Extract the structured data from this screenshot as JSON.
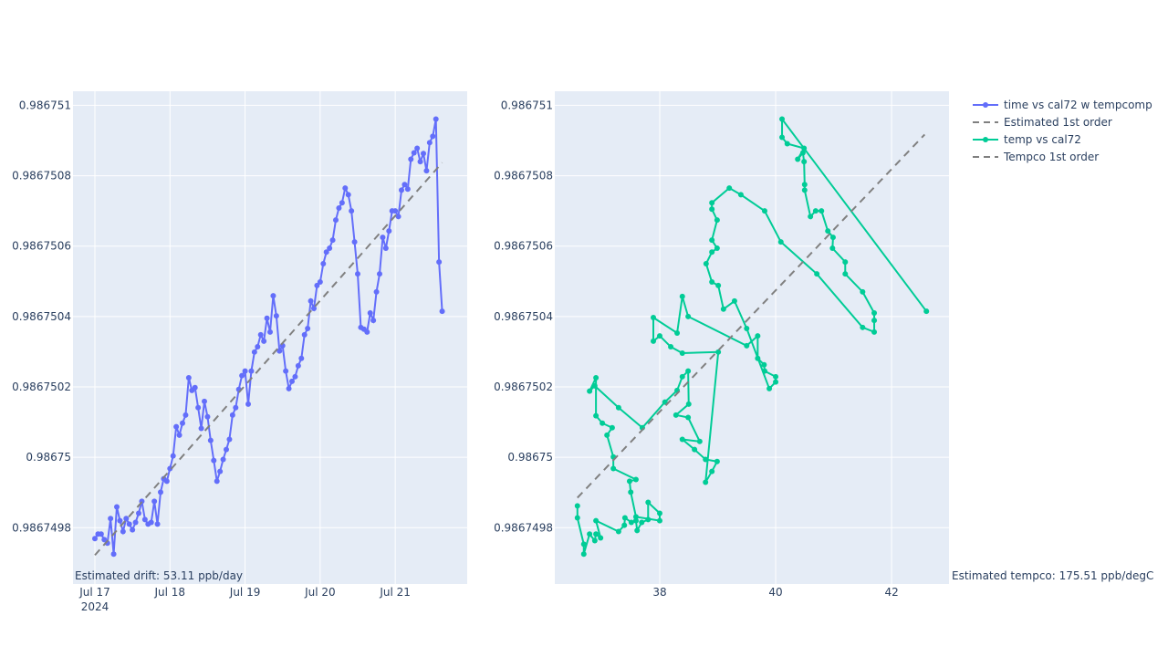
{
  "chart_data": [
    {
      "type": "line",
      "xaxis_type": "date",
      "annotation": "Estimated drift:  53.11 ppb/day",
      "xlim": [
        "2024-07-16 17:00",
        "2024-07-21 23:00"
      ],
      "xticks": [
        {
          "value": "2024-07-17 00:00",
          "label": "Jul 17\n2024"
        },
        {
          "value": "2024-07-18 00:00",
          "label": "Jul 18"
        },
        {
          "value": "2024-07-19 00:00",
          "label": "Jul 19"
        },
        {
          "value": "2024-07-20 00:00",
          "label": "Jul 20"
        },
        {
          "value": "2024-07-21 00:00",
          "label": "Jul 21"
        }
      ],
      "ylim": [
        0.98674964,
        0.98675104
      ],
      "yticks": [
        0.9867498,
        0.98675,
        0.9867502,
        0.9867504,
        0.9867506,
        0.9867508,
        0.986751
      ],
      "grid": true,
      "series": [
        {
          "name": "time vs cal72 w tempcomp",
          "color": "#636efa",
          "mode": "lines+markers",
          "x": [
            "2024-07-17 00:00",
            "2024-07-17 01:00",
            "2024-07-17 02:00",
            "2024-07-17 03:00",
            "2024-07-17 04:00",
            "2024-07-17 05:00",
            "2024-07-17 06:00",
            "2024-07-17 07:00",
            "2024-07-17 08:00",
            "2024-07-17 09:00",
            "2024-07-17 10:00",
            "2024-07-17 11:00",
            "2024-07-17 12:00",
            "2024-07-17 13:00",
            "2024-07-17 14:00",
            "2024-07-17 15:00",
            "2024-07-17 16:00",
            "2024-07-17 17:00",
            "2024-07-17 18:00",
            "2024-07-17 19:00",
            "2024-07-17 20:00",
            "2024-07-17 21:00",
            "2024-07-17 22:00",
            "2024-07-17 23:00",
            "2024-07-18 00:00",
            "2024-07-18 01:00",
            "2024-07-18 02:00",
            "2024-07-18 03:00",
            "2024-07-18 04:00",
            "2024-07-18 05:00",
            "2024-07-18 06:00",
            "2024-07-18 07:00",
            "2024-07-18 08:00",
            "2024-07-18 09:00",
            "2024-07-18 10:00",
            "2024-07-18 11:00",
            "2024-07-18 12:00",
            "2024-07-18 13:00",
            "2024-07-18 14:00",
            "2024-07-18 15:00",
            "2024-07-18 16:00",
            "2024-07-18 17:00",
            "2024-07-18 18:00",
            "2024-07-18 19:00",
            "2024-07-18 20:00",
            "2024-07-18 21:00",
            "2024-07-18 22:00",
            "2024-07-18 23:00",
            "2024-07-19 00:00",
            "2024-07-19 01:00",
            "2024-07-19 02:00",
            "2024-07-19 03:00",
            "2024-07-19 04:00",
            "2024-07-19 05:00",
            "2024-07-19 06:00",
            "2024-07-19 07:00",
            "2024-07-19 08:00",
            "2024-07-19 09:00",
            "2024-07-19 10:00",
            "2024-07-19 11:00",
            "2024-07-19 12:00",
            "2024-07-19 13:00",
            "2024-07-19 14:00",
            "2024-07-19 15:00",
            "2024-07-19 16:00",
            "2024-07-19 17:00",
            "2024-07-19 18:00",
            "2024-07-19 19:00",
            "2024-07-19 20:00",
            "2024-07-19 21:00",
            "2024-07-19 22:00",
            "2024-07-19 23:00",
            "2024-07-20 00:00",
            "2024-07-20 01:00",
            "2024-07-20 02:00",
            "2024-07-20 03:00",
            "2024-07-20 04:00",
            "2024-07-20 05:00",
            "2024-07-20 06:00",
            "2024-07-20 07:00",
            "2024-07-20 08:00",
            "2024-07-20 09:00",
            "2024-07-20 10:00",
            "2024-07-20 11:00",
            "2024-07-20 12:00",
            "2024-07-20 13:00",
            "2024-07-20 14:00",
            "2024-07-20 15:00",
            "2024-07-20 16:00",
            "2024-07-20 17:00",
            "2024-07-20 18:00",
            "2024-07-20 19:00",
            "2024-07-20 20:00",
            "2024-07-20 21:00",
            "2024-07-20 22:00",
            "2024-07-20 23:00",
            "2024-07-21 00:00",
            "2024-07-21 01:00",
            "2024-07-21 02:00",
            "2024-07-21 03:00",
            "2024-07-21 04:00",
            "2024-07-21 05:00",
            "2024-07-21 06:00",
            "2024-07-21 07:00",
            "2024-07-21 08:00",
            "2024-07-21 09:00",
            "2024-07-21 10:00",
            "2024-07-21 11:00",
            "2024-07-21 12:00",
            "2024-07-21 13:00",
            "2024-07-21 14:00",
            "2024-07-21 15:00"
          ],
          "values": [
            0.986749769,
            0.986749782,
            0.986749782,
            0.986749766,
            0.986749756,
            0.986749826,
            0.986749725,
            0.986749859,
            0.98674982,
            0.986749789,
            0.986749826,
            0.98674981,
            0.986749794,
            0.986749815,
            0.986749841,
            0.986749875,
            0.986749823,
            0.98674981,
            0.986749815,
            0.986749875,
            0.98674981,
            0.986749901,
            0.986749939,
            0.986749932,
            0.986749968,
            0.986750004,
            0.986750087,
            0.986750063,
            0.986750097,
            0.98675012,
            0.986750226,
            0.98675019,
            0.986750198,
            0.986750141,
            0.986750082,
            0.986750159,
            0.986750115,
            0.986750048,
            0.986749991,
            0.986749932,
            0.98674996,
            0.986749994,
            0.986750022,
            0.986750051,
            0.98675012,
            0.986750141,
            0.986750193,
            0.986750232,
            0.986750245,
            0.986750151,
            0.986750245,
            0.986750299,
            0.986750314,
            0.986750348,
            0.98675033,
            0.986750395,
            0.986750356,
            0.986750459,
            0.986750402,
            0.986750302,
            0.986750317,
            0.986750245,
            0.986750195,
            0.986750216,
            0.986750229,
            0.98675026,
            0.986750281,
            0.986750348,
            0.986750366,
            0.986750444,
            0.986750423,
            0.986750488,
            0.986750498,
            0.98675055,
            0.986750583,
            0.986750594,
            0.986750617,
            0.986750674,
            0.986750708,
            0.986750723,
            0.986750765,
            0.986750746,
            0.9867507,
            0.986750612,
            0.986750521,
            0.986750369,
            0.986750364,
            0.986750356,
            0.98675041,
            0.986750389,
            0.98675047,
            0.986750521,
            0.986750625,
            0.986750594,
            0.986750643,
            0.9867507,
            0.9867507,
            0.986750684,
            0.986750759,
            0.986750775,
            0.986750762,
            0.986750847,
            0.986750865,
            0.986750878,
            0.98675084,
            0.986750863,
            0.986750814,
            0.986750894,
            0.986750912,
            0.986750961,
            0.986750555,
            0.986750415
          ]
        },
        {
          "name": "Estimated 1st order",
          "color": "#808080",
          "mode": "lines",
          "dash": "dash",
          "x": [
            "2024-07-17 00:00",
            "2024-07-21 15:00"
          ],
          "values": [
            0.986749722,
            0.986750837
          ]
        }
      ]
    },
    {
      "type": "line",
      "xaxis_type": "linear",
      "annotation": "Estimated tempco:  175.51 ppb/degC",
      "xlim": [
        36.19,
        42.99
      ],
      "xticks": [
        38,
        40,
        42
      ],
      "ylim": [
        0.98674964,
        0.98675104
      ],
      "yticks": [
        0.9867498,
        0.98675,
        0.9867502,
        0.9867504,
        0.9867506,
        0.9867508,
        0.986751
      ],
      "grid": true,
      "series": [
        {
          "name": "temp vs cal72",
          "color": "#00cc96",
          "mode": "lines+markers",
          "x": [
            36.58,
            36.58,
            36.69,
            36.69,
            36.79,
            36.88,
            36.9,
            36.98,
            36.9,
            37.29,
            37.39,
            37.4,
            37.51,
            37.59,
            37.61,
            37.69,
            37.8,
            37.8,
            38,
            38,
            37.59,
            37.5,
            37.48,
            37.59,
            37.2,
            37.2,
            37.09,
            37.18,
            37.01,
            36.9,
            36.9,
            36.79,
            36.88,
            37.29,
            37.7,
            38.09,
            38.3,
            38.39,
            38.49,
            38.5,
            38.28,
            38.49,
            38.69,
            38.39,
            38.6,
            38.79,
            38.99,
            38.9,
            38.79,
            39.01,
            38.39,
            38.19,
            38,
            37.89,
            37.89,
            38.3,
            38.39,
            38.49,
            39.5,
            39.69,
            39.69,
            39.8,
            39.81,
            40,
            40,
            39.89,
            39.5,
            39.29,
            39.1,
            39.01,
            38.9,
            38.8,
            38.9,
            38.99,
            38.9,
            38.99,
            38.9,
            38.9,
            39.2,
            39.4,
            39.81,
            40.09,
            40.71,
            41.5,
            41.7,
            41.7,
            41.7,
            41.5,
            41.2,
            41.2,
            40.98,
            40.99,
            40.9,
            40.79,
            40.69,
            40.6,
            40.5,
            40.5,
            40.49,
            40.47,
            40.38,
            40.49,
            40.2,
            40.11,
            40.11,
            42.6
          ],
          "values": [
            0.986749862,
            0.986749828,
            0.986749753,
            0.986749725,
            0.986749782,
            0.986749763,
            0.986749782,
            0.986749771,
            0.98674982,
            0.986749789,
            0.986749807,
            0.986749828,
            0.986749815,
            0.98674982,
            0.986749792,
            0.986749815,
            0.986749823,
            0.986749872,
            0.986749841,
            0.98674982,
            0.986749831,
            0.986749901,
            0.986749932,
            0.986749937,
            0.986749968,
            0.986750001,
            0.986750063,
            0.986750084,
            0.986750097,
            0.986750118,
            0.986750226,
            0.986750188,
            0.986750203,
            0.986750141,
            0.986750084,
            0.986750157,
            0.98675019,
            0.986750229,
            0.986750245,
            0.986750151,
            0.98675012,
            0.986750113,
            0.986750045,
            0.986750051,
            0.986750022,
            0.986749994,
            0.986749988,
            0.98674996,
            0.986749929,
            0.986750299,
            0.986750296,
            0.986750314,
            0.986750345,
            0.98675033,
            0.986750397,
            0.986750353,
            0.986750457,
            0.9867504,
            0.986750317,
            0.986750345,
            0.986750281,
            0.986750263,
            0.986750245,
            0.986750229,
            0.986750214,
            0.986750195,
            0.986750366,
            0.986750444,
            0.986750421,
            0.986750488,
            0.986750498,
            0.98675055,
            0.986750583,
            0.986750594,
            0.986750617,
            0.986750674,
            0.986750705,
            0.986750723,
            0.986750765,
            0.986750746,
            0.9867507,
            0.986750612,
            0.986750521,
            0.986750369,
            0.986750356,
            0.986750389,
            0.98675041,
            0.98675047,
            0.986750521,
            0.986750555,
            0.986750594,
            0.986750625,
            0.986750643,
            0.9867507,
            0.9867507,
            0.986750684,
            0.986750759,
            0.986750775,
            0.98675084,
            0.986750865,
            0.986750847,
            0.986750878,
            0.986750891,
            0.986750909,
            0.986750961,
            0.986750415
          ]
        },
        {
          "name": "Tempco 1st order",
          "color": "#808080",
          "mode": "lines",
          "dash": "dash",
          "x": [
            36.58,
            42.57
          ],
          "values": [
            0.986749885,
            0.986750917
          ]
        }
      ]
    }
  ]
}
